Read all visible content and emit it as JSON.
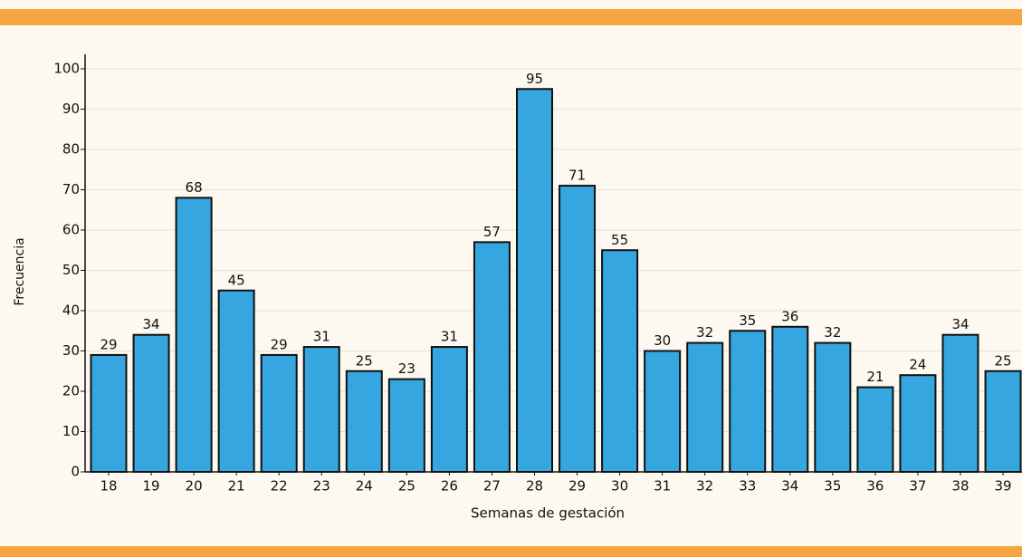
{
  "chart_data": {
    "type": "bar",
    "x_label": "Semanas de gestación",
    "y_label": "Frecuencia",
    "categories": [
      "18",
      "19",
      "20",
      "21",
      "22",
      "23",
      "24",
      "25",
      "26",
      "27",
      "28",
      "29",
      "30",
      "31",
      "32",
      "33",
      "34",
      "35",
      "36",
      "37",
      "38",
      "39"
    ],
    "values": [
      29,
      34,
      68,
      45,
      29,
      31,
      25,
      23,
      31,
      57,
      95,
      71,
      55,
      30,
      32,
      35,
      36,
      32,
      21,
      24,
      34,
      25
    ],
    "color": "#35a6e0",
    "ylim": [
      0,
      100
    ],
    "yticks": [
      0,
      10,
      20,
      30,
      40,
      50,
      60,
      70,
      80,
      90,
      100
    ],
    "grid": true
  }
}
